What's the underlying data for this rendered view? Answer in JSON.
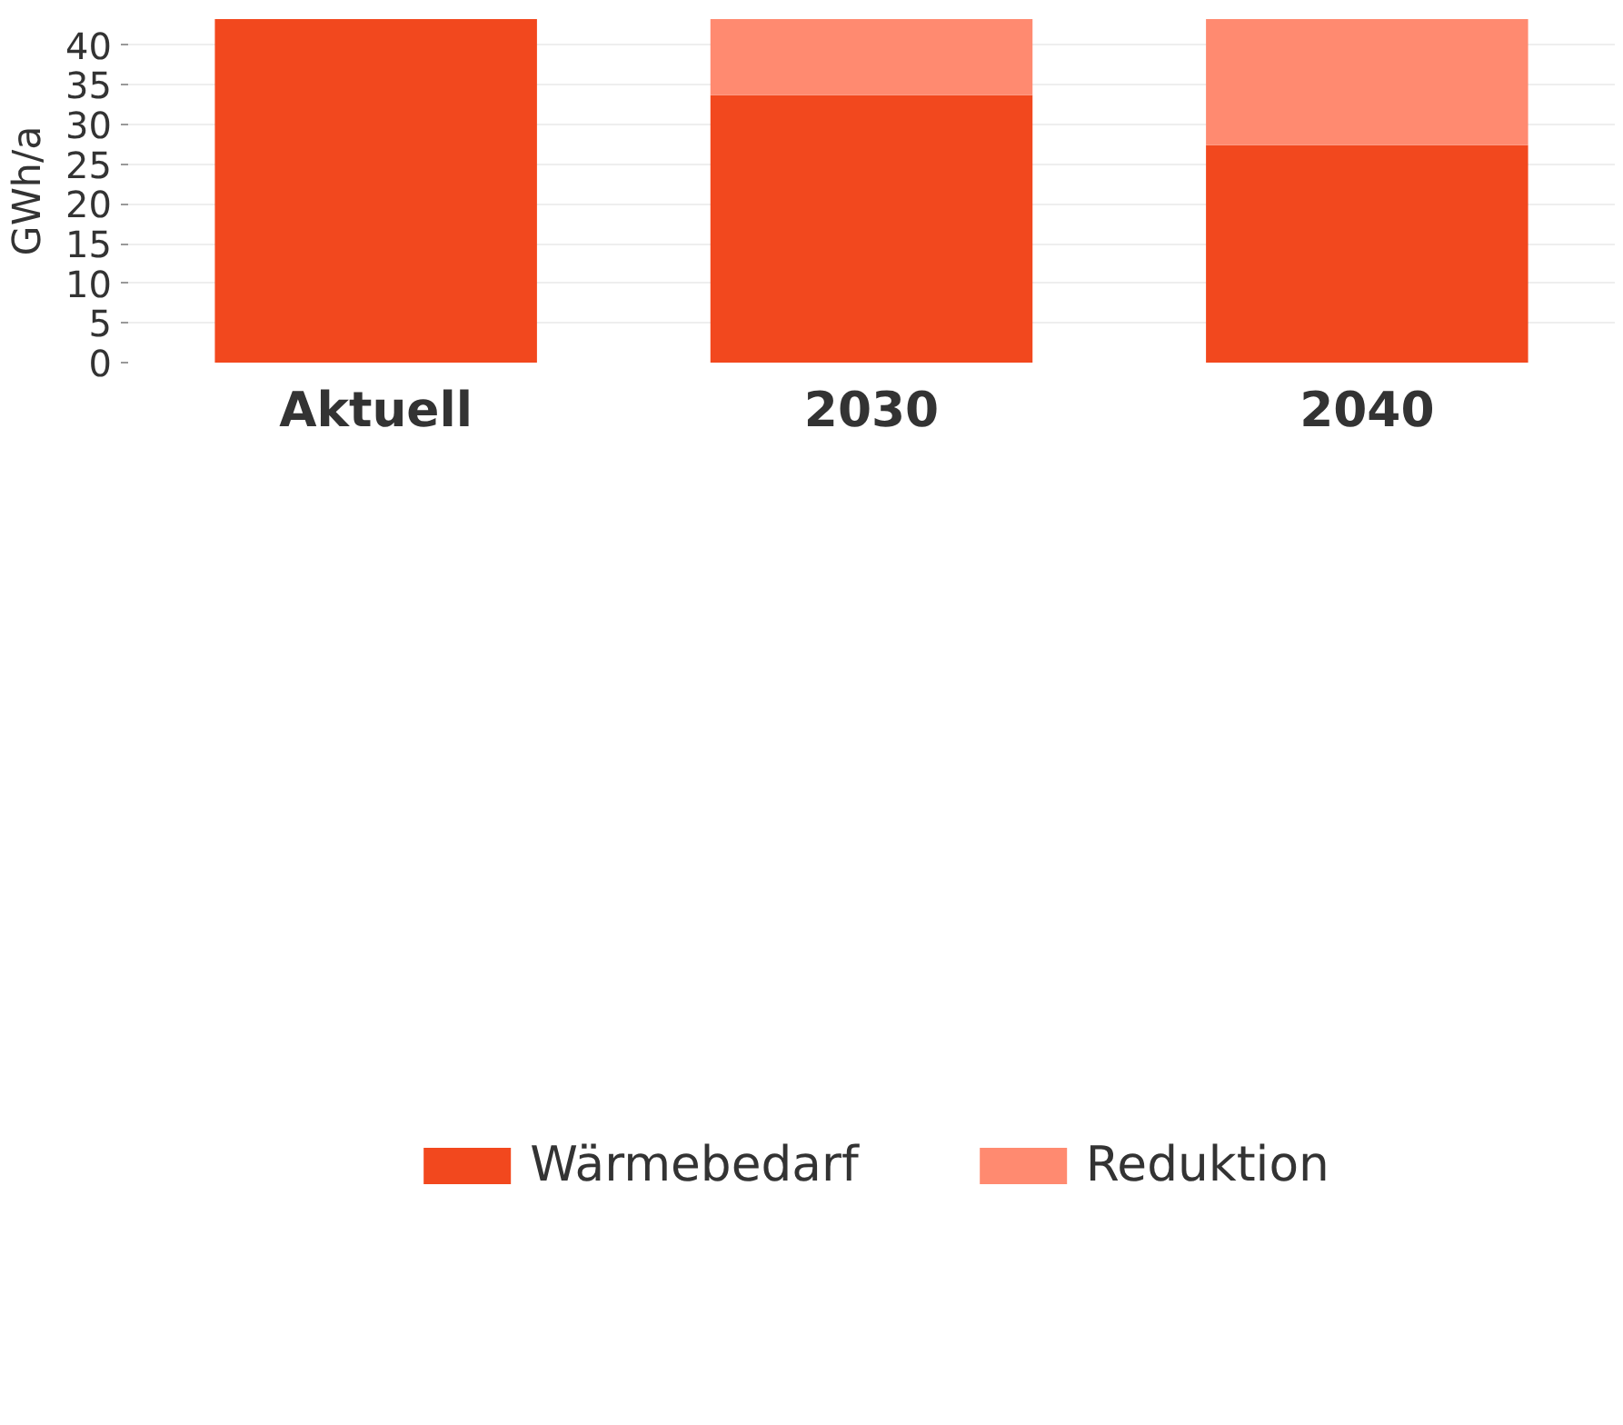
{
  "chart_data": {
    "type": "bar",
    "ylabel": "GWh/a",
    "categories": [
      "Aktuell",
      "2030",
      "2040"
    ],
    "stacked": true,
    "series": [
      {
        "name": "Wärmebedarf",
        "color": "#f2481e",
        "values": [
          43.3,
          33.7,
          27.4
        ]
      },
      {
        "name": "Reduktion",
        "color": "#ff8a70",
        "values": [
          null,
          9.6,
          15.9
        ]
      }
    ],
    "ylim": [
      0,
      43.3
    ],
    "yticks": [
      0,
      5,
      10,
      15,
      20,
      25,
      30,
      35,
      40
    ],
    "grid": "y",
    "legend": "bottom"
  }
}
